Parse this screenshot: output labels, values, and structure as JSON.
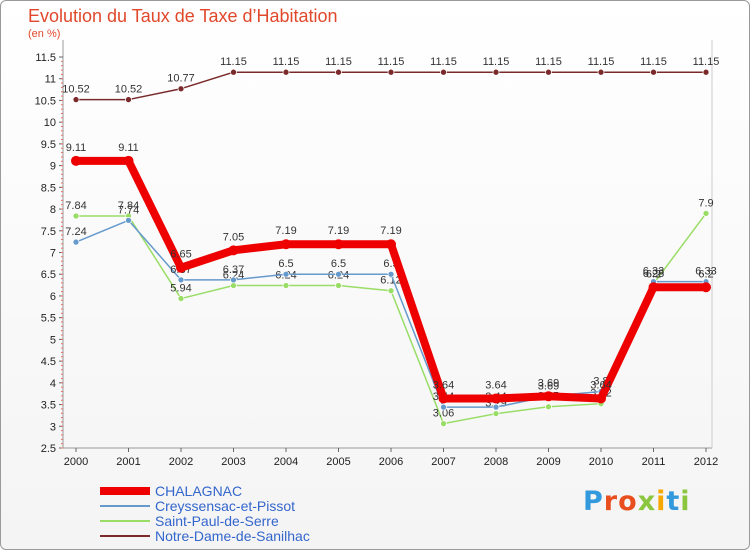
{
  "chart_data": {
    "type": "line",
    "title": "Evolution du Taux de Taxe d’Habitation",
    "subtitle": "(en %)",
    "xlabel": "",
    "ylabel": "(en %)",
    "x": [
      "2000",
      "2001",
      "2002",
      "2003",
      "2004",
      "2005",
      "2006",
      "2007",
      "2008",
      "2009",
      "2010",
      "2011",
      "2012"
    ],
    "ylim": [
      2.5,
      11.5
    ],
    "yticks": [
      "2.5",
      "3",
      "3.5",
      "4",
      "4.5",
      "5",
      "5.5",
      "6",
      "6.5",
      "7",
      "7.5",
      "8",
      "8.5",
      "9",
      "9.5",
      "10",
      "10.5",
      "11",
      "11.5"
    ],
    "grid": false,
    "legend_position": "bottom-left",
    "series": [
      {
        "name": "Notre-Dame-de-Sanilhac",
        "color": "#7a2a2a",
        "values": [
          10.52,
          10.52,
          10.77,
          11.15,
          11.15,
          11.15,
          11.15,
          11.15,
          11.15,
          11.15,
          11.15,
          11.15,
          11.15
        ],
        "labels": [
          "10.52",
          "10.52",
          "10.77",
          "11.15",
          "11.15",
          "11.15",
          "11.15",
          "11.15",
          "11.15",
          "11.15",
          "11.15",
          "11.15",
          "11.15"
        ]
      },
      {
        "name": "Saint-Paul-de-Serre",
        "color": "#99dd66",
        "values": [
          7.84,
          7.84,
          5.94,
          6.24,
          6.24,
          6.24,
          6.12,
          3.06,
          3.29,
          3.45,
          3.52,
          6.28,
          7.9
        ],
        "labels": [
          "7.84",
          "7.84",
          "5.94",
          "6.24",
          "6.24",
          "6.24",
          "6.12",
          "3.06",
          "3.29",
          "3.45",
          "3.52",
          "6.28",
          "7.9"
        ]
      },
      {
        "name": "Creyssensac-et-Pissot",
        "color": "#6699cc",
        "values": [
          7.24,
          7.74,
          6.37,
          6.37,
          6.5,
          6.5,
          6.5,
          3.44,
          3.44,
          3.69,
          3.8,
          6.33,
          6.33
        ],
        "labels": [
          "7.24",
          "7.74",
          "6.37",
          "6.37",
          "6.5",
          "6.5",
          "6.5",
          "3.44",
          "3.44",
          "3.69",
          "3.8",
          "6.33",
          "6.33"
        ]
      },
      {
        "name": "CHALAGNAC",
        "color": "#ee0000",
        "values": [
          9.11,
          9.11,
          6.65,
          7.05,
          7.19,
          7.19,
          7.19,
          3.64,
          3.64,
          3.69,
          3.64,
          6.2,
          6.2
        ],
        "labels": [
          "9.11",
          "9.11",
          "6.65",
          "7.05",
          "7.19",
          "7.19",
          "7.19",
          "3.64",
          "3.64",
          "3.69",
          "3.64",
          "6.2",
          "6.2"
        ]
      }
    ]
  },
  "legend": {
    "items": [
      {
        "label": "CHALAGNAC",
        "color": "#ee0000",
        "thickness": 8
      },
      {
        "label": "Creyssensac-et-Pissot",
        "color": "#6699cc",
        "thickness": 2
      },
      {
        "label": "Saint-Paul-de-Serre",
        "color": "#99dd66",
        "thickness": 2
      },
      {
        "label": "Notre-Dame-de-Sanilhac",
        "color": "#7a2a2a",
        "thickness": 2
      }
    ]
  },
  "logo": {
    "letters": [
      "P",
      "r",
      "o",
      "x",
      "i",
      "t",
      "i"
    ],
    "colors": [
      "#3399dd",
      "#e94f1e",
      "#e94f1e",
      "#8cc63f",
      "#f6a800",
      "#3399dd",
      "#8cc63f"
    ]
  }
}
